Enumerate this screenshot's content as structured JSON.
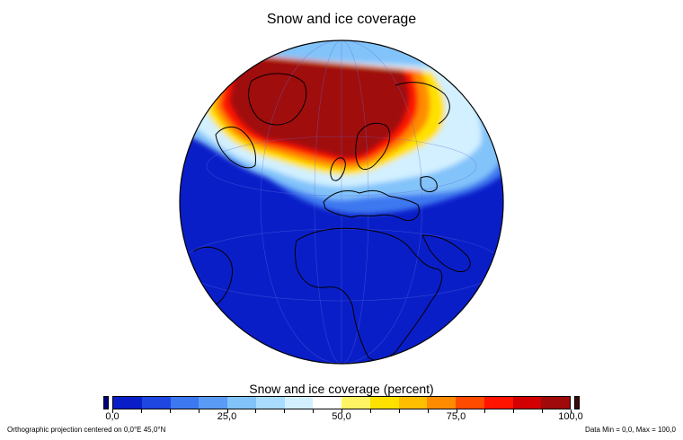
{
  "title": "Snow and ice coverage",
  "colorbar": {
    "title": "Snow and ice coverage (percent)",
    "tick_labels": [
      "0,0",
      "25,0",
      "50,0",
      "75,0",
      "100,0"
    ],
    "tick_values": [
      0,
      25,
      50,
      75,
      100
    ],
    "range": [
      0,
      100
    ],
    "under_color": "#000080",
    "over_color": "#3c0a0a",
    "colors": [
      "#0a1ec8",
      "#1e46e1",
      "#3c78f0",
      "#5a9bf5",
      "#82c3fa",
      "#aadcff",
      "#d2f0ff",
      "#ffffff",
      "#fff564",
      "#ffe100",
      "#ffbe00",
      "#ff8c00",
      "#ff4b00",
      "#ff1400",
      "#d20000",
      "#a00a0a"
    ]
  },
  "map": {
    "projection": "orthographic",
    "center": "0,0°E 45,0°N",
    "ocean_color": "#0a1ec8",
    "max_color": "#a00a0a"
  },
  "footer": {
    "left": "Orthographic projection centered on 0,0°E 45,0°N",
    "right": "Data Min = 0,0, Max = 100,0"
  }
}
